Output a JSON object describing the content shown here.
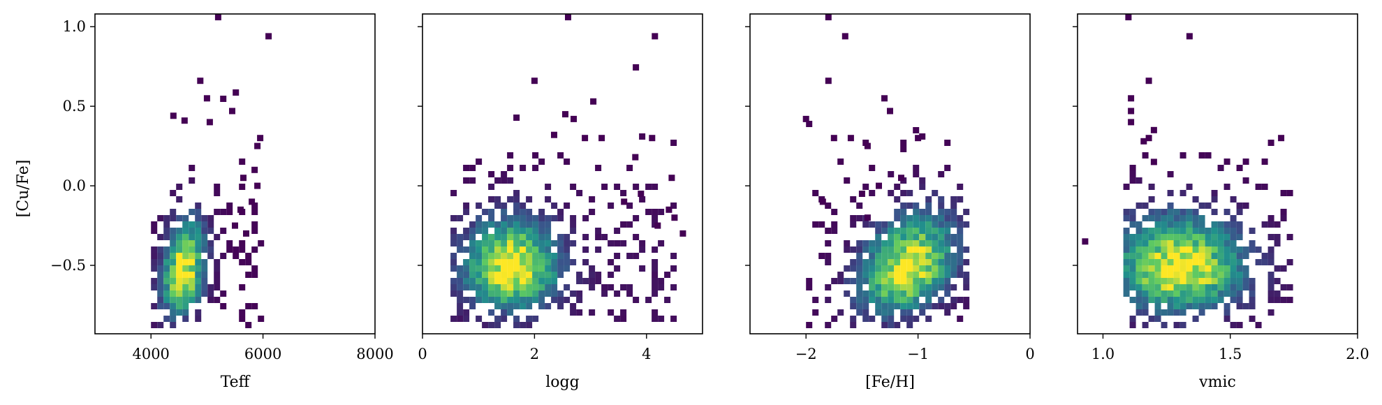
{
  "chart_data": [
    {
      "type": "heatmap",
      "xlabel": "Teff",
      "ylabel": "[Cu/Fe]",
      "xlim": [
        3000,
        8000
      ],
      "ylim": [
        -0.93,
        1.08
      ],
      "xticks": [
        4000,
        6000,
        8000
      ],
      "xtick_labels": [
        "4000",
        "6000",
        "8000"
      ],
      "yticks": [
        1.0,
        0.5,
        0.0,
        -0.5
      ],
      "ytick_labels": [
        "1.0",
        "0.5",
        "0.0",
        "−0.5"
      ],
      "x_range": [
        4000,
        6100
      ],
      "core": [
        4580,
        -0.55
      ],
      "spread": [
        260,
        0.17
      ],
      "tail": [
        0.26,
        0.22,
        0.012
      ],
      "scatter_points": [
        [
          5200,
          1.06
        ],
        [
          6100,
          0.94
        ],
        [
          4880,
          0.66
        ],
        [
          5000,
          0.55
        ],
        [
          5450,
          0.47
        ],
        [
          4400,
          0.44
        ],
        [
          4600,
          0.41
        ],
        [
          5050,
          0.4
        ],
        [
          5950,
          0.3
        ],
        [
          5900,
          0.25
        ],
        [
          5850,
          0.1
        ],
        [
          5650,
          0.05
        ],
        [
          5900,
          0.0
        ],
        [
          5800,
          -0.1
        ],
        [
          5700,
          -0.3
        ],
        [
          5600,
          -0.15
        ],
        [
          5500,
          -0.25
        ]
      ]
    },
    {
      "type": "heatmap",
      "xlabel": "logg",
      "ylabel": "",
      "xlim": [
        0,
        5
      ],
      "ylim": [
        -0.93,
        1.08
      ],
      "xticks": [
        0,
        2,
        4
      ],
      "xtick_labels": [
        "0",
        "2",
        "4"
      ],
      "yticks": [
        1.0,
        0.5,
        0.0,
        -0.5
      ],
      "ytick_labels": [],
      "x_range": [
        0.5,
        4.6
      ],
      "core": [
        1.6,
        -0.53
      ],
      "spread": [
        0.55,
        0.16
      ],
      "tail": [
        0.0,
        0.18,
        0.05
      ],
      "scatter_points": [
        [
          2.6,
          1.06
        ],
        [
          4.15,
          0.94
        ],
        [
          2.0,
          0.66
        ],
        [
          3.05,
          0.53
        ],
        [
          2.55,
          0.45
        ],
        [
          2.7,
          0.42
        ],
        [
          2.35,
          0.32
        ],
        [
          2.9,
          0.3
        ],
        [
          3.2,
          0.3
        ],
        [
          4.1,
          0.3
        ],
        [
          3.8,
          0.18
        ],
        [
          4.45,
          0.05
        ],
        [
          4.4,
          -0.15
        ],
        [
          4.65,
          -0.3
        ],
        [
          4.2,
          -0.25
        ],
        [
          4.5,
          -0.2
        ],
        [
          3.6,
          -0.1
        ],
        [
          3.9,
          -0.05
        ]
      ]
    },
    {
      "type": "heatmap",
      "xlabel": "[Fe/H]",
      "ylabel": "",
      "xlim": [
        -2.5,
        0
      ],
      "ylim": [
        -0.93,
        1.08
      ],
      "xticks": [
        -2,
        -1,
        0
      ],
      "xtick_labels": [
        "−2",
        "−1",
        "0"
      ],
      "yticks": [
        1.0,
        0.5,
        0.0,
        -0.5
      ],
      "ytick_labels": [],
      "x_range": [
        -2.0,
        -0.5
      ],
      "core": [
        -1.1,
        -0.53
      ],
      "spread": [
        0.28,
        0.17
      ],
      "tail": [
        0.33,
        0.2,
        0.02
      ],
      "scatter_points": [
        [
          -1.8,
          1.06
        ],
        [
          -1.65,
          0.94
        ],
        [
          -1.8,
          0.66
        ],
        [
          -1.3,
          0.55
        ],
        [
          -1.25,
          0.47
        ],
        [
          -2.0,
          0.42
        ],
        [
          -1.75,
          0.3
        ],
        [
          -1.6,
          0.3
        ],
        [
          -1.0,
          0.3
        ],
        [
          -1.45,
          0.25
        ],
        [
          -1.15,
          0.05
        ],
        [
          -1.35,
          0.0
        ],
        [
          -1.5,
          -0.05
        ],
        [
          -1.85,
          -0.1
        ],
        [
          -1.45,
          -0.2
        ]
      ]
    },
    {
      "type": "heatmap",
      "xlabel": "vmic",
      "ylabel": "",
      "xlim": [
        0.9,
        2.0
      ],
      "ylim": [
        -0.93,
        1.08
      ],
      "xticks": [
        1.0,
        1.5,
        2.0
      ],
      "xtick_labels": [
        "1.0",
        "1.5",
        "2.0"
      ],
      "yticks": [
        1.0,
        0.5,
        0.0,
        -0.5
      ],
      "ytick_labels": [],
      "x_range": [
        1.08,
        1.75
      ],
      "core": [
        1.3,
        -0.53
      ],
      "spread": [
        0.17,
        0.17
      ],
      "tail": [
        0.0,
        0.2,
        0.03
      ],
      "scatter_points": [
        [
          1.1,
          1.06
        ],
        [
          1.34,
          0.94
        ],
        [
          0.93,
          -0.35
        ],
        [
          1.18,
          0.66
        ],
        [
          1.11,
          0.55
        ],
        [
          1.11,
          0.47
        ],
        [
          1.11,
          0.4
        ],
        [
          1.2,
          0.35
        ],
        [
          1.16,
          0.28
        ],
        [
          1.18,
          0.3
        ],
        [
          1.2,
          0.15
        ],
        [
          1.7,
          0.3
        ]
      ]
    }
  ]
}
